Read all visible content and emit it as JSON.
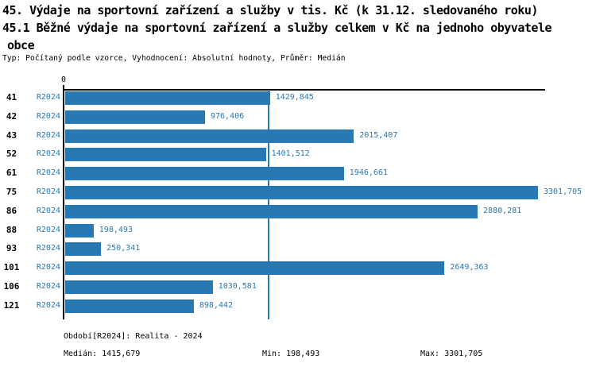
{
  "header": {
    "title_line1": "45. Výdaje na sportovní zařízení a služby v tis. Kč (k 31.12. sledovaného roku)",
    "title_line2": "45.1 Běžné výdaje na sportovní zařízení a služby celkem v Kč na jednoho obyvatele",
    "title_line3": "obce",
    "meta_line": "Typ: Počítaný podle vzorce, Vyhodnocení: Absolutní hodnoty, Průměr: Medián"
  },
  "colors": {
    "bar_blue": "#2878b4",
    "text_blue": "#2878b4",
    "axis_black": "#000000"
  },
  "chart_data": {
    "type": "bar",
    "orientation": "horizontal",
    "title": "45. Výdaje na sportovní zařízení a služby v tis. Kč (k 31.12. sledovaného roku)",
    "subtitle": "45.1 Běžné výdaje na sportovní zařízení a služby celkem v Kč na jednoho obyvatele obce",
    "series_label": "R2024",
    "categories": [
      "41",
      "42",
      "43",
      "52",
      "61",
      "75",
      "86",
      "88",
      "93",
      "101",
      "106",
      "121"
    ],
    "values": [
      1429.845,
      976.406,
      2015.407,
      1401.512,
      1946.661,
      3301.705,
      2880.281,
      198.493,
      250.341,
      2649.363,
      1030.581,
      898.442
    ],
    "value_labels": [
      "1429,845",
      "976,406",
      "2015,407",
      "1401,512",
      "1946,661",
      "3301,705",
      "2880,281",
      "198,493",
      "250,341",
      "2649,363",
      "1030,581",
      "898,442"
    ],
    "axis": {
      "zero_label": "0",
      "xlim": [
        0,
        3301.705
      ],
      "median_value": 1415.679,
      "grid": false
    },
    "legend_position": "none"
  },
  "footer": {
    "period_line": "Období[R2024]: Realita - 2024",
    "median_label": "Medián: 1415,679",
    "min_label": "Min: 198,493",
    "max_label": "Max: 3301,705"
  }
}
